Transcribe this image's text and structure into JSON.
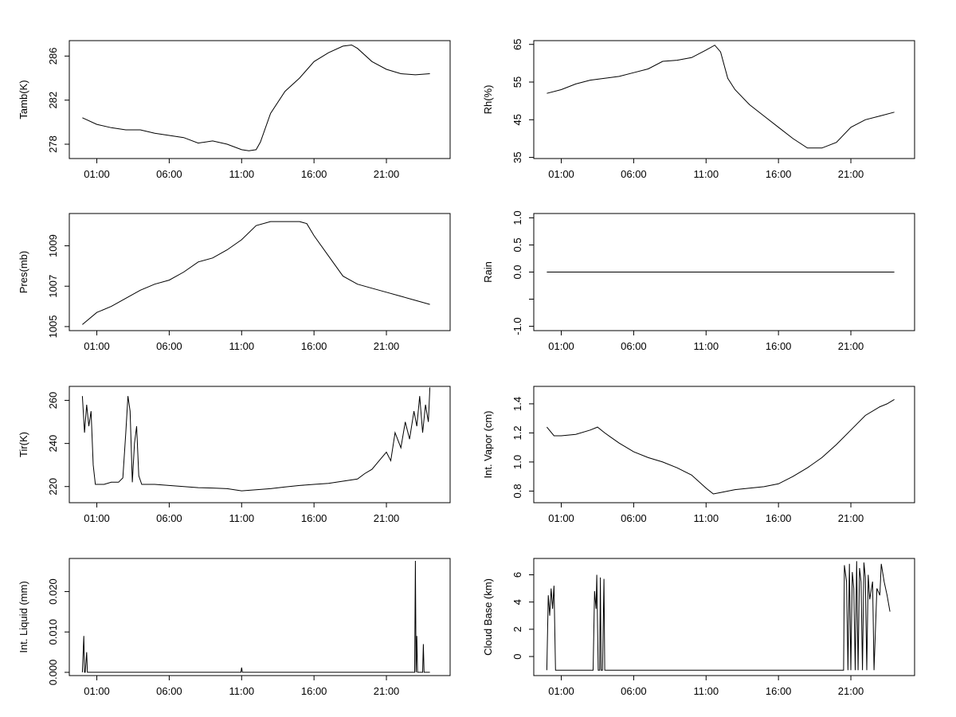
{
  "x_tick_labels": [
    "01:00",
    "06:00",
    "11:00",
    "16:00",
    "21:00"
  ],
  "x_tick_hours": [
    1,
    6,
    11,
    16,
    21
  ],
  "x_domain_hours": [
    -0.9,
    25.4
  ],
  "chart_data": [
    {
      "id": "tamb",
      "type": "line",
      "ylabel": "Tamb(K)",
      "ylim": [
        276.7,
        287.4
      ],
      "yticks": [
        278,
        282,
        286
      ],
      "ytick_labels": [
        "278",
        "282",
        "286"
      ],
      "x": [
        0,
        1,
        2,
        3,
        4,
        5,
        6,
        7,
        8,
        9,
        10,
        11,
        11.5,
        12,
        12.3,
        13,
        14,
        15,
        16,
        17,
        18,
        18.6,
        19,
        20,
        21,
        22,
        23,
        24
      ],
      "y": [
        280.4,
        279.8,
        279.5,
        279.3,
        279.3,
        279.0,
        278.8,
        278.6,
        278.1,
        278.3,
        278.0,
        277.5,
        277.4,
        277.5,
        278.2,
        280.8,
        282.8,
        284.0,
        285.5,
        286.3,
        286.9,
        287.0,
        286.7,
        285.5,
        284.8,
        284.4,
        284.3,
        284.4
      ]
    },
    {
      "id": "rh",
      "type": "line",
      "ylabel": "Rh(%)",
      "ylim": [
        34.7,
        66
      ],
      "yticks": [
        35,
        45,
        55,
        65
      ],
      "ytick_labels": [
        "35",
        "45",
        "55",
        "65"
      ],
      "x": [
        0,
        1,
        2,
        3,
        4,
        5,
        6,
        7,
        8,
        9,
        10,
        11,
        11.6,
        12,
        12.5,
        13,
        14,
        15,
        16,
        17,
        18,
        19,
        20,
        21,
        22,
        23,
        24
      ],
      "y": [
        52,
        53,
        54.5,
        55.5,
        56,
        56.5,
        57.5,
        58.5,
        60.5,
        60.8,
        61.5,
        63.5,
        64.8,
        63,
        56,
        53,
        49,
        46,
        43,
        40,
        37.5,
        37.5,
        39,
        43,
        45,
        46,
        47
      ]
    },
    {
      "id": "pres",
      "type": "line",
      "ylabel": "Pres(mb)",
      "ylim": [
        1004.8,
        1010.6
      ],
      "yticks": [
        1005,
        1007,
        1009
      ],
      "ytick_labels": [
        "1005",
        "1007",
        "1009"
      ],
      "x": [
        0,
        1,
        2,
        3,
        4,
        5,
        6,
        7,
        8,
        9,
        10,
        11,
        12,
        13,
        14,
        15,
        15.5,
        16,
        17,
        18,
        19,
        20,
        21,
        22,
        23,
        24
      ],
      "y": [
        1005.1,
        1005.7,
        1006.0,
        1006.4,
        1006.8,
        1007.1,
        1007.3,
        1007.7,
        1008.2,
        1008.4,
        1008.8,
        1009.3,
        1010.0,
        1010.2,
        1010.2,
        1010.2,
        1010.1,
        1009.5,
        1008.5,
        1007.5,
        1007.1,
        1006.9,
        1006.7,
        1006.5,
        1006.3,
        1006.1
      ]
    },
    {
      "id": "rain",
      "type": "line",
      "ylabel": "Rain",
      "ylim": [
        -1.08,
        1.08
      ],
      "yticks": [
        -1.0,
        -0.5,
        0.0,
        0.5,
        1.0
      ],
      "ytick_labels": [
        "-1.0",
        "",
        "0.0",
        "0.5",
        "1.0"
      ],
      "x": [
        0,
        24
      ],
      "y": [
        0,
        0
      ]
    },
    {
      "id": "tir",
      "type": "line",
      "ylabel": "Tir(K)",
      "ylim": [
        212.5,
        266.5
      ],
      "yticks": [
        220,
        240,
        260
      ],
      "ytick_labels": [
        "220",
        "240",
        "260"
      ],
      "x": [
        0,
        0.15,
        0.3,
        0.45,
        0.6,
        0.75,
        0.9,
        1.0,
        1.5,
        2.0,
        2.5,
        2.8,
        3.0,
        3.15,
        3.3,
        3.45,
        3.6,
        3.75,
        3.9,
        4.1,
        5,
        6,
        7,
        8,
        9,
        10,
        11,
        12,
        13,
        14,
        15,
        16,
        17,
        18,
        19,
        19.5,
        20,
        20.5,
        21,
        21.3,
        21.6,
        22,
        22.3,
        22.6,
        22.9,
        23.1,
        23.3,
        23.5,
        23.7,
        23.9,
        24
      ],
      "y": [
        262,
        245,
        258,
        248,
        255,
        230,
        221,
        221,
        221,
        222,
        222,
        224,
        245,
        262,
        255,
        222,
        240,
        248,
        225,
        221,
        221,
        220.5,
        220,
        219.5,
        219.3,
        219,
        218,
        218.5,
        219,
        219.8,
        220.5,
        221,
        221.5,
        222.5,
        223.5,
        226,
        228,
        232,
        236,
        232,
        245,
        238,
        250,
        242,
        255,
        248,
        262,
        245,
        258,
        250,
        266
      ]
    },
    {
      "id": "vapor",
      "type": "line",
      "ylabel": "Int. Vapor (cm)",
      "ylim": [
        0.72,
        1.52
      ],
      "yticks": [
        0.8,
        1.0,
        1.2,
        1.4
      ],
      "ytick_labels": [
        "0.8",
        "1.0",
        "1.2",
        "1.4"
      ],
      "x": [
        0,
        0.5,
        1,
        2,
        3,
        3.5,
        4,
        5,
        6,
        7,
        8,
        9,
        10,
        11,
        11.5,
        12,
        13,
        14,
        15,
        16,
        17,
        18,
        19,
        20,
        21,
        22,
        23,
        23.5,
        24
      ],
      "y": [
        1.24,
        1.18,
        1.18,
        1.19,
        1.22,
        1.24,
        1.2,
        1.13,
        1.07,
        1.03,
        1.0,
        0.96,
        0.91,
        0.82,
        0.78,
        0.79,
        0.81,
        0.82,
        0.83,
        0.85,
        0.9,
        0.96,
        1.03,
        1.12,
        1.22,
        1.32,
        1.38,
        1.4,
        1.43
      ]
    },
    {
      "id": "liquid",
      "type": "line",
      "ylabel": "Int. Liquid (mm)",
      "ylim": [
        -0.0008,
        0.0282
      ],
      "yticks": [
        0.0,
        0.01,
        0.02
      ],
      "ytick_labels": [
        "0.000",
        "0.010",
        "0.020"
      ],
      "x": [
        0,
        0.1,
        0.15,
        0.2,
        0.3,
        0.35,
        0.4,
        10.95,
        11.0,
        11.05,
        22.95,
        23.0,
        23.05,
        23.1,
        23.15,
        23.2,
        23.5,
        23.55,
        23.6,
        24
      ],
      "y": [
        0,
        0.009,
        0,
        0,
        0.005,
        0,
        0,
        0,
        0.0012,
        0,
        0,
        0.0276,
        0,
        0.009,
        0,
        0,
        0,
        0.007,
        0,
        0
      ]
    },
    {
      "id": "cloud",
      "type": "line",
      "ylabel": "Cloud Base (km)",
      "ylim": [
        -1.4,
        7.2
      ],
      "yticks": [
        0,
        2,
        4,
        6
      ],
      "ytick_labels": [
        "0",
        "2",
        "4",
        "6"
      ],
      "x": [
        0,
        0.1,
        0.2,
        0.3,
        0.4,
        0.5,
        0.6,
        0.7,
        0.8,
        3.2,
        3.3,
        3.4,
        3.45,
        3.55,
        3.65,
        3.7,
        3.75,
        3.85,
        3.95,
        4.0,
        4.05,
        20.5,
        20.55,
        20.7,
        20.8,
        20.9,
        21.0,
        21.1,
        21.2,
        21.3,
        21.4,
        21.5,
        21.6,
        21.7,
        21.8,
        21.9,
        22.0,
        22.1,
        22.2,
        22.3,
        22.5,
        22.6,
        22.8,
        23.0,
        23.1,
        23.3,
        23.5,
        23.7
      ],
      "y": [
        -1,
        4.5,
        3,
        5,
        3.5,
        5.2,
        -1,
        -1,
        -1,
        -1,
        4.8,
        3.5,
        6,
        -1,
        -1,
        5.8,
        -1,
        -1,
        5.7,
        -1,
        -1,
        -1,
        6.7,
        5.5,
        -1,
        6.8,
        -1,
        6.2,
        5,
        -1,
        7,
        -1,
        6.5,
        5.5,
        -1,
        6.9,
        5.8,
        -1,
        6,
        4.2,
        5.5,
        -1,
        5,
        4.5,
        6.8,
        5.5,
        4.5,
        3.3
      ]
    }
  ]
}
